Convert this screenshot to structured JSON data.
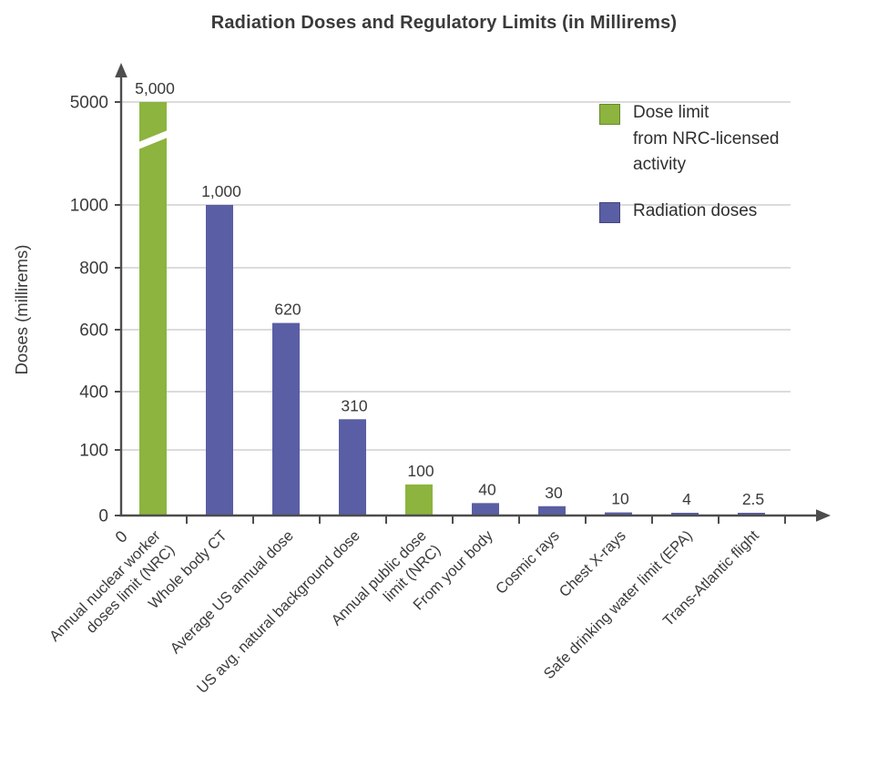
{
  "title": "Radiation Doses and Regulatory Limits (in Millirems)",
  "y_axis_label": "Doses (millirems)",
  "x_origin_label": "0",
  "legend": {
    "items": [
      {
        "key": "limit",
        "lines": [
          "Dose limit",
          "from NRC-licensed",
          "activity"
        ]
      },
      {
        "key": "dose",
        "lines": [
          "Radiation doses"
        ]
      }
    ]
  },
  "colors": {
    "limit": "#8cb43e",
    "dose": "#5a5ea4",
    "axis": "#4d4d4d",
    "grid": "#c7c7c7",
    "text": "#3b3b3b"
  },
  "chart_data": {
    "type": "bar",
    "title": "Radiation Doses and Regulatory Limits (in Millirems)",
    "xlabel": "",
    "ylabel": "Doses (millirems)",
    "ylim": [
      0,
      5000
    ],
    "y_ticks": [
      0,
      100,
      400,
      600,
      800,
      1000,
      5000
    ],
    "y_tick_labels": [
      "0",
      "100",
      "400",
      "600",
      "800",
      "1000",
      "5000"
    ],
    "grid": "horizontal",
    "legend_position": "top-right",
    "axis_break": {
      "between": [
        1000,
        5000
      ],
      "shown_on": "first bar"
    },
    "series": [
      {
        "key": "limit",
        "name": "Dose limit from NRC-licensed activity",
        "color": "#8cb43e"
      },
      {
        "key": "dose",
        "name": "Radiation doses",
        "color": "#5a5ea4"
      }
    ],
    "bars": [
      {
        "category_lines": [
          "Annual nuclear worker",
          "doses limit (NRC)"
        ],
        "value": 5000,
        "value_label": "5,000",
        "series": "limit"
      },
      {
        "category_lines": [
          "Whole body CT"
        ],
        "value": 1000,
        "value_label": "1,000",
        "series": "dose"
      },
      {
        "category_lines": [
          "Average US annual dose"
        ],
        "value": 620,
        "value_label": "620",
        "series": "dose"
      },
      {
        "category_lines": [
          "US avg. natural background dose"
        ],
        "value": 310,
        "value_label": "310",
        "series": "dose"
      },
      {
        "category_lines": [
          "Annual public dose",
          "limit (NRC)"
        ],
        "value": 100,
        "value_label": "100",
        "series": "limit"
      },
      {
        "category_lines": [
          "From your body"
        ],
        "value": 40,
        "value_label": "40",
        "series": "dose"
      },
      {
        "category_lines": [
          "Cosmic rays"
        ],
        "value": 30,
        "value_label": "30",
        "series": "dose"
      },
      {
        "category_lines": [
          "Chest X-rays"
        ],
        "value": 10,
        "value_label": "10",
        "series": "dose"
      },
      {
        "category_lines": [
          "Safe drinking water limit (EPA)"
        ],
        "value": 4,
        "value_label": "4",
        "series": "dose"
      },
      {
        "category_lines": [
          "Trans-Atlantic flight"
        ],
        "value": 2.5,
        "value_label": "2.5",
        "series": "dose"
      }
    ]
  }
}
